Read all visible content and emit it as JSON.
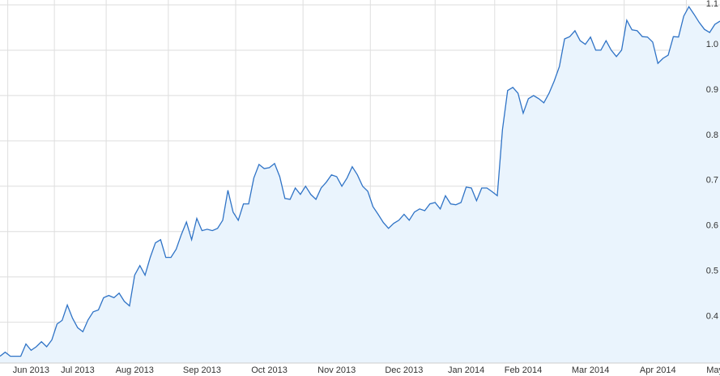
{
  "chart_data": {
    "type": "area",
    "categories": [
      null,
      null,
      null,
      null,
      null,
      null,
      "Jun 2013",
      null,
      null,
      null,
      null,
      null,
      null,
      null,
      null,
      "Jul 2013",
      null,
      null,
      null,
      null,
      null,
      null,
      null,
      null,
      null,
      null,
      "Aug 2013",
      null,
      null,
      null,
      null,
      null,
      null,
      null,
      null,
      null,
      null,
      null,
      null,
      "Sep 2013",
      null,
      null,
      null,
      null,
      null,
      null,
      null,
      null,
      null,
      null,
      null,
      null,
      "Oct 2013",
      null,
      null,
      null,
      null,
      null,
      null,
      null,
      null,
      null,
      null,
      null,
      null,
      "Nov 2013",
      null,
      null,
      null,
      null,
      null,
      null,
      null,
      null,
      null,
      null,
      null,
      null,
      "Dec 2013",
      null,
      null,
      null,
      null,
      null,
      null,
      null,
      null,
      null,
      null,
      null,
      "Jan 2014",
      null,
      null,
      null,
      null,
      null,
      null,
      null,
      null,
      null,
      null,
      "Feb 2014",
      null,
      null,
      null,
      null,
      null,
      null,
      null,
      null,
      null,
      null,
      null,
      null,
      "Mar 2014",
      null,
      null,
      null,
      null,
      null,
      null,
      null,
      null,
      null,
      null,
      null,
      null,
      "Apr 2014",
      null,
      null,
      null,
      null,
      null,
      null,
      null,
      null,
      null,
      null,
      "May",
      null
    ],
    "values": [
      0.325,
      0.334,
      0.325,
      0.325,
      0.325,
      0.352,
      0.338,
      0.346,
      0.357,
      0.346,
      0.361,
      0.396,
      0.404,
      0.438,
      0.409,
      0.388,
      0.379,
      0.405,
      0.423,
      0.427,
      0.454,
      0.459,
      0.454,
      0.464,
      0.446,
      0.436,
      0.504,
      0.525,
      0.504,
      0.543,
      0.575,
      0.582,
      0.543,
      0.543,
      0.561,
      0.593,
      0.621,
      0.582,
      0.629,
      0.602,
      0.605,
      0.602,
      0.607,
      0.625,
      0.691,
      0.643,
      0.625,
      0.661,
      0.661,
      0.718,
      0.748,
      0.739,
      0.741,
      0.75,
      0.721,
      0.673,
      0.671,
      0.696,
      0.682,
      0.7,
      0.682,
      0.671,
      0.696,
      0.709,
      0.725,
      0.721,
      0.7,
      0.718,
      0.743,
      0.725,
      0.7,
      0.689,
      0.655,
      0.638,
      0.62,
      0.607,
      0.618,
      0.625,
      0.638,
      0.625,
      0.643,
      0.65,
      0.646,
      0.661,
      0.664,
      0.65,
      0.679,
      0.661,
      0.659,
      0.664,
      0.698,
      0.696,
      0.668,
      0.696,
      0.696,
      0.688,
      0.679,
      0.825,
      0.911,
      0.918,
      0.905,
      0.861,
      0.893,
      0.9,
      0.893,
      0.884,
      0.905,
      0.932,
      0.964,
      1.025,
      1.03,
      1.043,
      1.021,
      1.013,
      1.029,
      1.0,
      1.0,
      1.021,
      1.0,
      0.986,
      1.0,
      1.066,
      1.045,
      1.043,
      1.03,
      1.029,
      1.018,
      0.971,
      0.982,
      0.989,
      1.03,
      1.029,
      1.075,
      1.096,
      1.079,
      1.061,
      1.046,
      1.039,
      1.057,
      1.064
    ],
    "color": "#2f73c6",
    "fill": "#eaf4fd",
    "ylim": [
      0.31,
      1.1
    ],
    "yticks": [
      0.4,
      0.5,
      0.6,
      0.7,
      0.8,
      0.9,
      {
        "value": 1.0,
        "label": "1.0"
      },
      1.1
    ],
    "grid": true
  }
}
